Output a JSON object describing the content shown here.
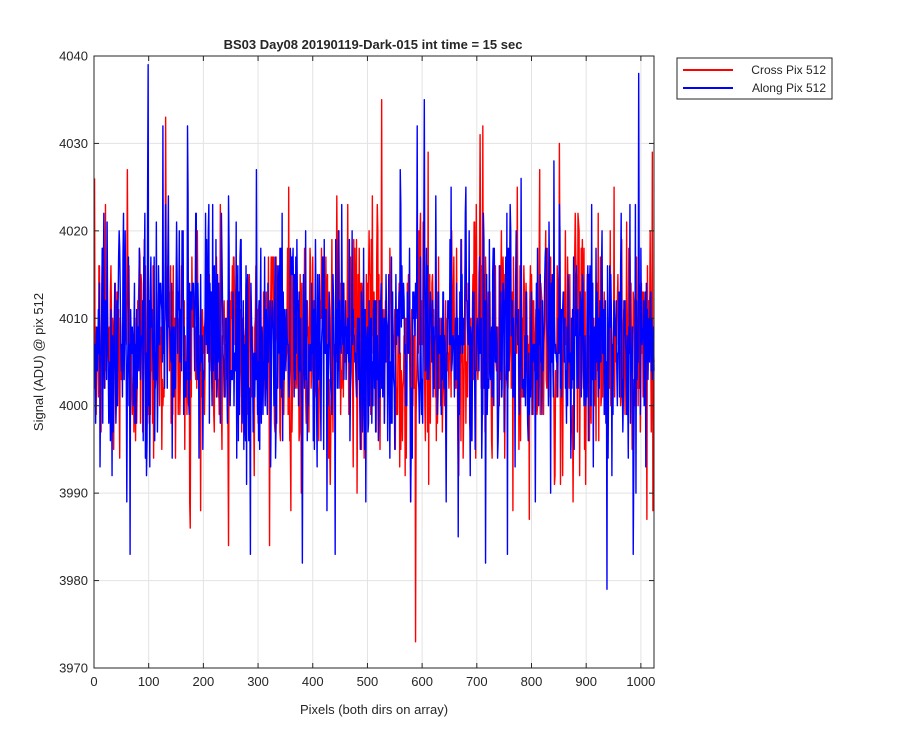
{
  "chart_data": {
    "type": "line",
    "title": "BS03 Day08 20190119-Dark-015 int time = 15 sec",
    "xlabel": "Pixels (both dirs on array)",
    "ylabel": "Signal (ADU) @ pix 512",
    "xlim": [
      0,
      1024
    ],
    "ylim": [
      3970,
      4040
    ],
    "xticks": [
      "0",
      "100",
      "200",
      "300",
      "400",
      "500",
      "600",
      "700",
      "800",
      "900",
      "1000"
    ],
    "yticks": [
      "3970",
      "3980",
      "3990",
      "4000",
      "4010",
      "4020",
      "4030",
      "4040"
    ],
    "grid": true,
    "legend_position": "outside-top-right",
    "noise": {
      "mean": 4007,
      "std": 7
    },
    "series": [
      {
        "name": "Cross Pix 512",
        "color": "#ff0000",
        "points_count": 1024,
        "highlights": [
          {
            "x": 20,
            "y": 4023
          },
          {
            "x": 60,
            "y": 4027
          },
          {
            "x": 130,
            "y": 4033
          },
          {
            "x": 175,
            "y": 3986
          },
          {
            "x": 245,
            "y": 3984
          },
          {
            "x": 320,
            "y": 3984
          },
          {
            "x": 355,
            "y": 4025
          },
          {
            "x": 525,
            "y": 4035
          },
          {
            "x": 587,
            "y": 3973
          },
          {
            "x": 610,
            "y": 4029
          },
          {
            "x": 705,
            "y": 4031
          },
          {
            "x": 710,
            "y": 4032
          },
          {
            "x": 795,
            "y": 3987
          },
          {
            "x": 850,
            "y": 4030
          },
          {
            "x": 950,
            "y": 4025
          },
          {
            "x": 1010,
            "y": 3987
          },
          {
            "x": 1020,
            "y": 4029
          }
        ]
      },
      {
        "name": "Along Pix 512",
        "color": "#0000ff",
        "points_count": 1024,
        "highlights": [
          {
            "x": 65,
            "y": 3983
          },
          {
            "x": 98,
            "y": 4039
          },
          {
            "x": 125,
            "y": 4032
          },
          {
            "x": 170,
            "y": 4032
          },
          {
            "x": 285,
            "y": 3983
          },
          {
            "x": 380,
            "y": 3982
          },
          {
            "x": 420,
            "y": 4019
          },
          {
            "x": 440,
            "y": 3983
          },
          {
            "x": 590,
            "y": 4032
          },
          {
            "x": 603,
            "y": 4035
          },
          {
            "x": 665,
            "y": 3985
          },
          {
            "x": 715,
            "y": 3982
          },
          {
            "x": 755,
            "y": 3983
          },
          {
            "x": 840,
            "y": 4028
          },
          {
            "x": 937,
            "y": 3979
          },
          {
            "x": 985,
            "y": 3983
          },
          {
            "x": 995,
            "y": 4038
          }
        ]
      }
    ]
  }
}
